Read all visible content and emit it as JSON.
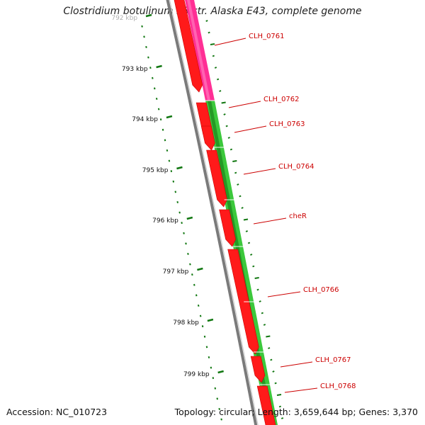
{
  "title": "Clostridium botulinum E3 str. Alaska E43, complete genome",
  "footer": {
    "accession": "Accession: NC_010723",
    "summary": "Topology: circular; Length: 3,659,644 bp; Genes: 3,370"
  },
  "colors": {
    "cds_forward": "#ff1a1a",
    "cds_forward_dark": "#cc0000",
    "gene_track": "#ff2f95",
    "gc_track": "#3cc83c",
    "gc_track_dark": "#1e8a1e",
    "backbone": "#808080",
    "label": "#cc0000",
    "tick": "#117711",
    "text": "#222222"
  },
  "ruler": {
    "ticks": [
      {
        "label": "792 kbp"
      },
      {
        "label": "793 kbp"
      },
      {
        "label": "794 kbp"
      },
      {
        "label": "795 kbp"
      },
      {
        "label": "796 kbp"
      },
      {
        "label": "797 kbp"
      },
      {
        "label": "798 kbp"
      },
      {
        "label": "799 kbp"
      }
    ]
  },
  "genes": [
    {
      "name": "CLH_0761"
    },
    {
      "name": "CLH_0762"
    },
    {
      "name": "CLH_0763"
    },
    {
      "name": "CLH_0764"
    },
    {
      "name": "cheR"
    },
    {
      "name": "CLH_0766"
    },
    {
      "name": "CLH_0767"
    },
    {
      "name": "CLH_0768"
    }
  ]
}
